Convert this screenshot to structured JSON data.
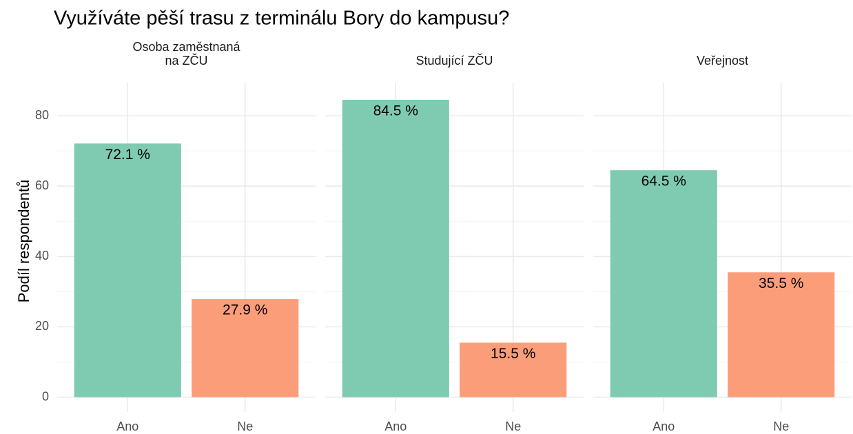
{
  "title": "Využíváte pěší trasu z terminálu Bory do kampusu?",
  "y_label": "Podíl respondentů",
  "chart_data": [
    {
      "type": "bar",
      "title": [
        "Osoba zaměstnaná",
        "na ZČU"
      ],
      "categories": [
        "Ano",
        "Ne"
      ],
      "values": [
        72.1,
        27.9
      ],
      "value_labels": [
        "72.1 %",
        "27.9 %"
      ],
      "colors": [
        "#7fcbb2",
        "#fc9d7a"
      ],
      "ylim": [
        -4.2,
        89.4
      ],
      "yticks": [
        0,
        20,
        40,
        60,
        80
      ],
      "minor_yticks": [
        10,
        30,
        50,
        70
      ],
      "grid": true
    },
    {
      "type": "bar",
      "title": [
        "Studující ZČU"
      ],
      "categories": [
        "Ano",
        "Ne"
      ],
      "values": [
        84.5,
        15.5
      ],
      "value_labels": [
        "84.5 %",
        "15.5 %"
      ],
      "colors": [
        "#7fcbb2",
        "#fc9d7a"
      ],
      "ylim": [
        -4.2,
        89.4
      ],
      "yticks": [
        0,
        20,
        40,
        60,
        80
      ],
      "minor_yticks": [
        10,
        30,
        50,
        70
      ],
      "grid": true
    },
    {
      "type": "bar",
      "title": [
        "Veřejnost"
      ],
      "categories": [
        "Ano",
        "Ne"
      ],
      "values": [
        64.5,
        35.5
      ],
      "value_labels": [
        "64.5 %",
        "35.5 %"
      ],
      "colors": [
        "#7fcbb2",
        "#fc9d7a"
      ],
      "ylim": [
        -4.2,
        89.4
      ],
      "yticks": [
        0,
        20,
        40,
        60,
        80
      ],
      "minor_yticks": [
        10,
        30,
        50,
        70
      ],
      "grid": true
    }
  ]
}
